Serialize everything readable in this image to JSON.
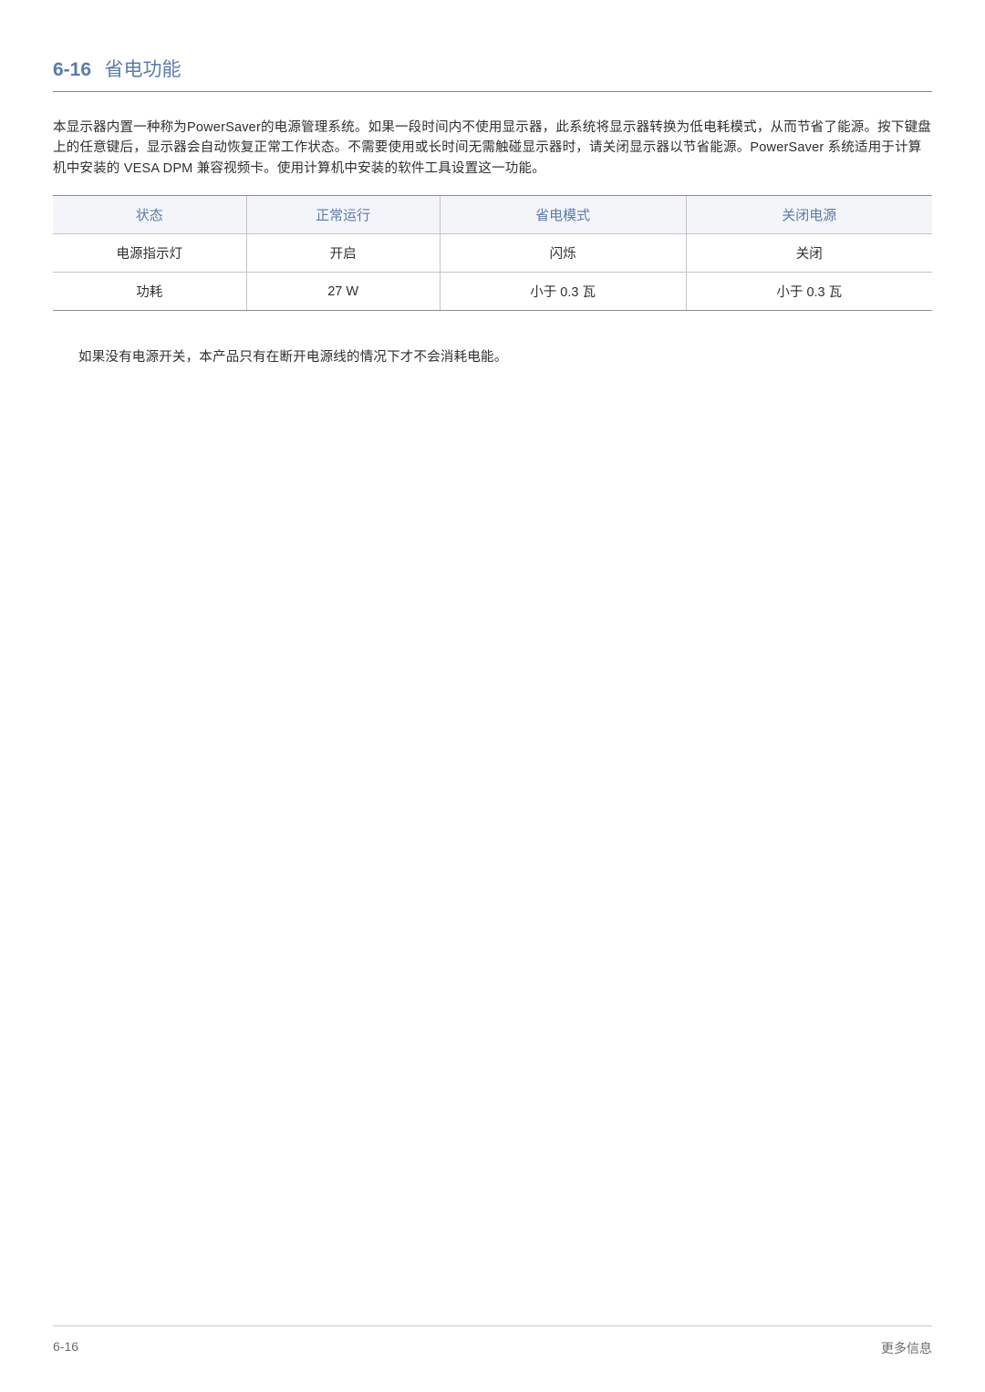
{
  "section": {
    "number": "6-16",
    "title": "省电功能"
  },
  "intro": "本显示器内置一种称为PowerSaver的电源管理系统。如果一段时间内不使用显示器，此系统将显示器转换为低电耗模式，从而节省了能源。按下键盘上的任意键后，显示器会自动恢复正常工作状态。不需要使用或长时间无需触碰显示器时，请关闭显示器以节省能源。PowerSaver 系统适用于计算机中安装的 VESA DPM 兼容视频卡。使用计算机中安装的软件工具设置这一功能。",
  "table": {
    "columns": [
      "状态",
      "正常运行",
      "省电模式",
      "关闭电源"
    ],
    "rows": [
      [
        "电源指示灯",
        "开启",
        "闪烁",
        "关闭"
      ],
      [
        "功耗",
        "27 W",
        "小于 0.3 瓦",
        "小于 0.3 瓦"
      ]
    ]
  },
  "note": "如果没有电源开关，本产品只有在断开电源线的情况下才不会消耗电能。",
  "footer": {
    "left": "6-16",
    "right": "更多信息"
  }
}
